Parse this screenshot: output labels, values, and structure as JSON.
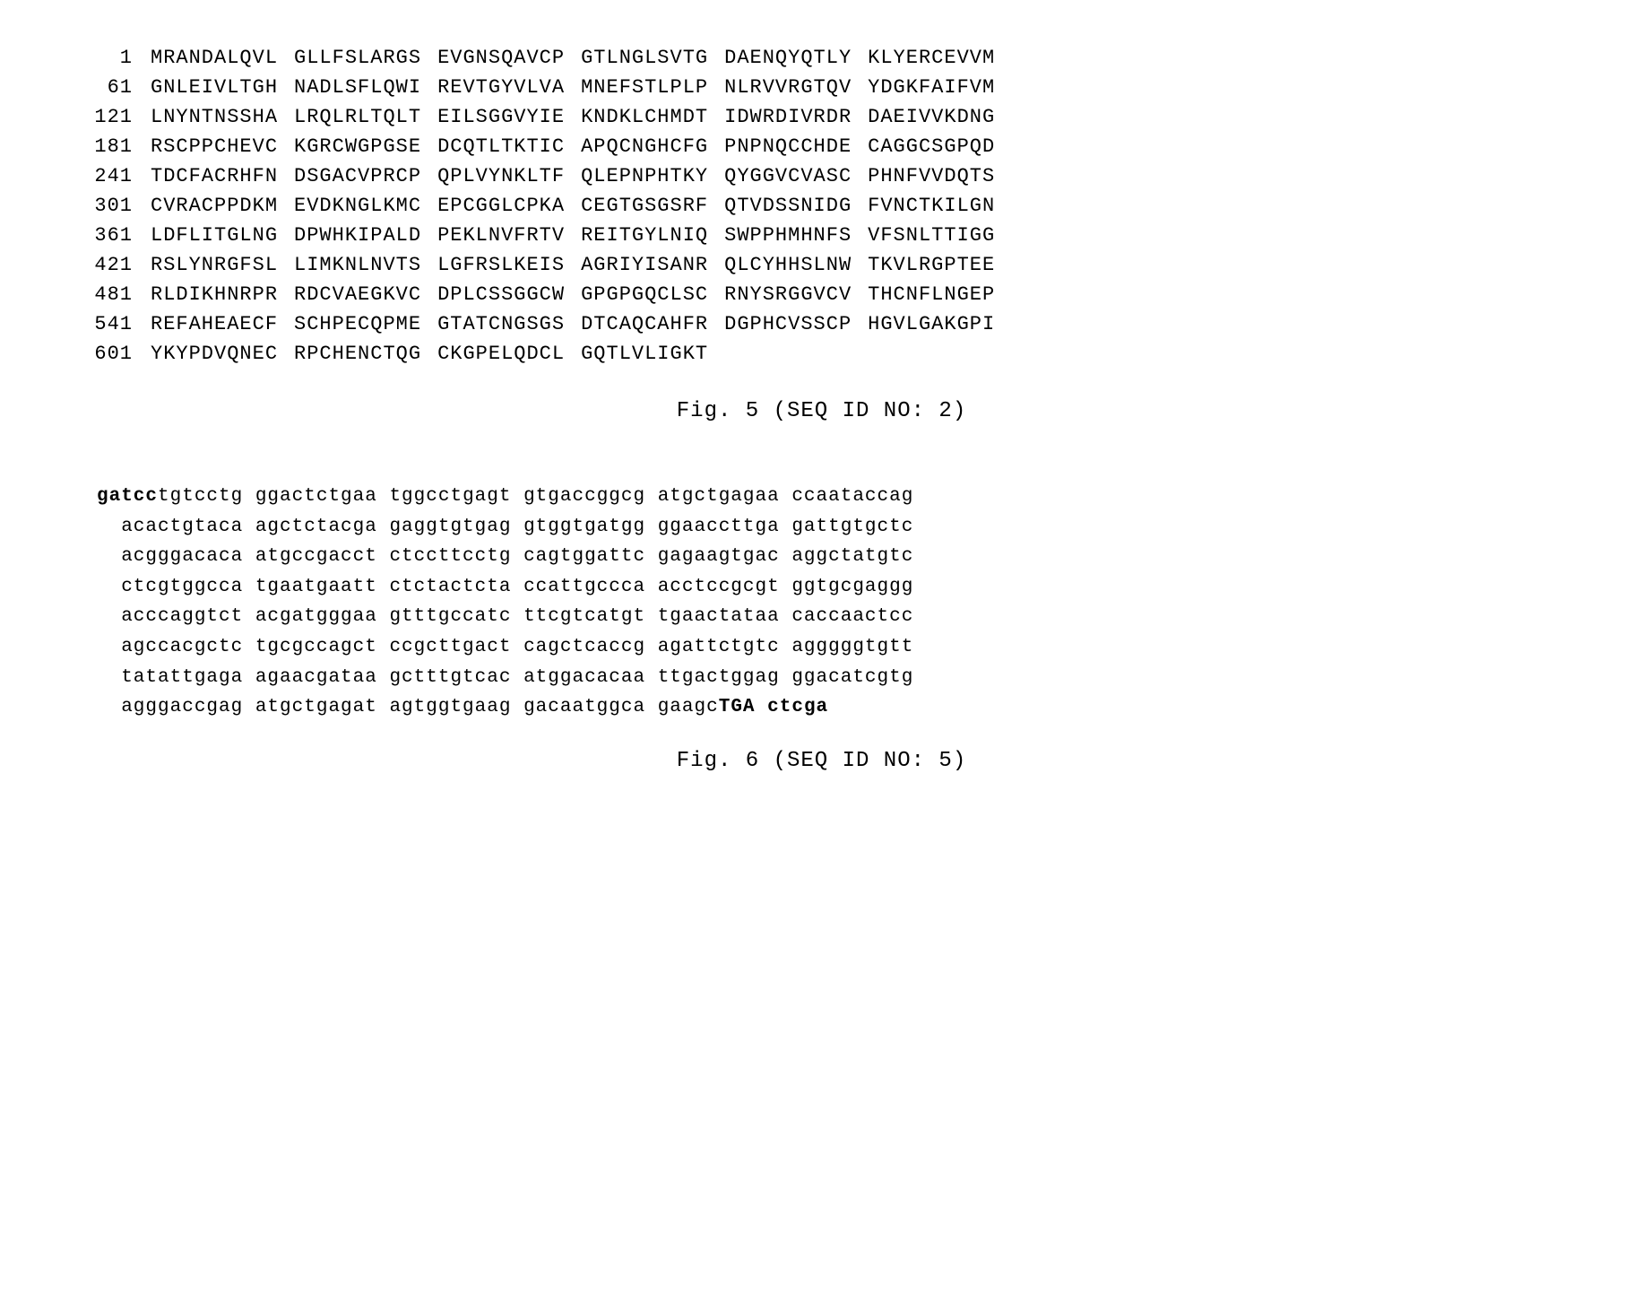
{
  "protein_sequence": {
    "caption": "Fig. 5 (SEQ ID NO: 2)",
    "font_family": "Courier New",
    "font_size_pt": 16,
    "background_color": "#ffffff",
    "text_color": "#000000",
    "rows": [
      {
        "pos": "1",
        "groups": [
          "MRANDALQVL",
          "GLLFSLARGS",
          "EVGNSQAVCP",
          "GTLNGLSVTG",
          "DAENQYQTLY",
          "KLYERCEVVM"
        ]
      },
      {
        "pos": "61",
        "groups": [
          "GNLEIVLTGH",
          "NADLSFLQWI",
          "REVTGYVLVA",
          "MNEFSTLPLP",
          "NLRVVRGTQV",
          "YDGKFAIFVM"
        ]
      },
      {
        "pos": "121",
        "groups": [
          "LNYNTNSSHA",
          "LRQLRLTQLT",
          "EILSGGVYIE",
          "KNDKLCHMDT",
          "IDWRDIVRDR",
          "DAEIVVKDNG"
        ]
      },
      {
        "pos": "181",
        "groups": [
          "RSCPPCHEVC",
          "KGRCWGPGSE",
          "DCQTLTKTIC",
          "APQCNGHCFG",
          "PNPNQCCHDE",
          "CAGGCSGPQD"
        ]
      },
      {
        "pos": "241",
        "groups": [
          "TDCFACRHFN",
          "DSGACVPRCP",
          "QPLVYNKLTF",
          "QLEPNPHTKY",
          "QYGGVCVASC",
          "PHNFVVDQTS"
        ]
      },
      {
        "pos": "301",
        "groups": [
          "CVRACPPDKM",
          "EVDKNGLKMC",
          "EPCGGLCPKA",
          "CEGTGSGSRF",
          "QTVDSSNIDG",
          "FVNCTKILGN"
        ]
      },
      {
        "pos": "361",
        "groups": [
          "LDFLITGLNG",
          "DPWHKIPALD",
          "PEKLNVFRTV",
          "REITGYLNIQ",
          "SWPPHMHNFS",
          "VFSNLTTIGG"
        ]
      },
      {
        "pos": "421",
        "groups": [
          "RSLYNRGFSL",
          "LIMKNLNVTS",
          "LGFRSLKEIS",
          "AGRIYISANR",
          "QLCYHHSLNW",
          "TKVLRGPTEE"
        ]
      },
      {
        "pos": "481",
        "groups": [
          "RLDIKHNRPR",
          "RDCVAEGKVC",
          "DPLCSSGGCW",
          "GPGPGQCLSC",
          "RNYSRGGVCV",
          "THCNFLNGEP"
        ]
      },
      {
        "pos": "541",
        "groups": [
          "REFAHEAECF",
          "SCHPECQPME",
          "GTATCNGSGS",
          "DTCAQCAHFR",
          "DGPHCVSSCP",
          "HGVLGAKGPI"
        ]
      },
      {
        "pos": "601",
        "groups": [
          "YKYPDVQNEC",
          "RPCHENCTQG",
          "CKGPELQDCL",
          "GQTLVLIGKT",
          "",
          ""
        ]
      }
    ]
  },
  "dna_sequence": {
    "caption": "Fig. 6 (SEQ ID NO: 5)",
    "font_family": "Courier New",
    "font_size_pt": 15,
    "background_color": "#ffffff",
    "text_color": "#000000",
    "prefix_bold": "gatcc",
    "suffix_bold1": "TGA",
    "suffix_bold2": "ctcga",
    "rows": [
      {
        "prefix": "gatcc",
        "groups": [
          "tgtcctg",
          "ggactctgaa",
          "tggcctgagt",
          "gtgaccggcg",
          "atgctgagaa",
          "ccaataccag"
        ]
      },
      {
        "prefix": "",
        "groups": [
          "acactgtaca",
          "agctctacga",
          "gaggtgtgag",
          "gtggtgatgg",
          "ggaaccttga",
          "gattgtgctc"
        ]
      },
      {
        "prefix": "",
        "groups": [
          "acgggacaca",
          "atgccgacct",
          "ctccttcctg",
          "cagtggattc",
          "gagaagtgac",
          "aggctatgtc"
        ]
      },
      {
        "prefix": "",
        "groups": [
          "ctcgtggcca",
          "tgaatgaatt",
          "ctctactcta",
          "ccattgccca",
          "acctccgcgt",
          "ggtgcgaggg"
        ]
      },
      {
        "prefix": "",
        "groups": [
          "acccaggtct",
          "acgatgggaa",
          "gtttgccatc",
          "ttcgtcatgt",
          "tgaactataa",
          "caccaactcc"
        ]
      },
      {
        "prefix": "",
        "groups": [
          "agccacgctc",
          "tgcgccagct",
          "ccgcttgact",
          "cagctcaccg",
          "agattctgtc",
          "agggggtgtt"
        ]
      },
      {
        "prefix": "",
        "groups": [
          "tatattgaga",
          "agaacgataa",
          "gctttgtcac",
          "atggacacaa",
          "ttgactggag",
          "ggacatcgtg"
        ]
      },
      {
        "prefix": "",
        "groups": [
          "agggaccgag",
          "atgctgagat",
          "agtggtgaag",
          "gacaatggca",
          "gaagcTGA",
          "ctcga"
        ]
      }
    ]
  }
}
